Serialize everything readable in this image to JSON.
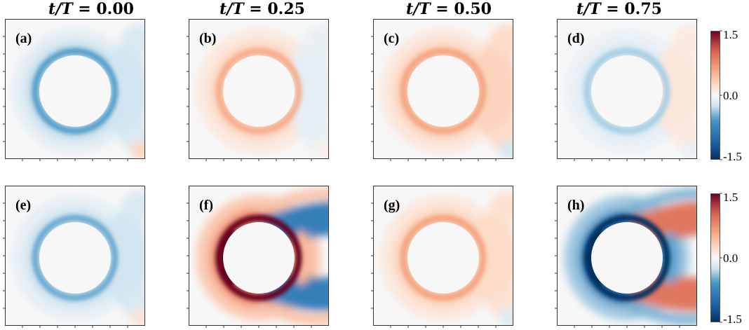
{
  "column_titles": [
    {
      "var": "t/T",
      "eq": " = ",
      "val": "0.00"
    },
    {
      "var": "t/T",
      "eq": " = ",
      "val": "0.25"
    },
    {
      "var": "t/T",
      "eq": " = ",
      "val": "0.50"
    },
    {
      "var": "t/T",
      "eq": " = ",
      "val": "0.75"
    }
  ],
  "colorbar": {
    "ticks": [
      "1.5",
      "0.0",
      "-1.5"
    ],
    "colors": {
      "low": "#053061",
      "mid": "#f7f7f7",
      "high": "#67001f"
    }
  },
  "chart_data": {
    "type": "heatmap",
    "vmin": -1.5,
    "vmax": 1.5,
    "panels": [
      {
        "label": "(a)",
        "row": 0,
        "col": 0,
        "ring": -0.55,
        "wake": -0.25,
        "wake_spread": "narrow",
        "wake_sign_alt": 0.1
      },
      {
        "label": "(b)",
        "row": 0,
        "col": 1,
        "ring": 0.55,
        "wake": -0.12,
        "wake_spread": "narrow",
        "wake_sign_alt": 0.0
      },
      {
        "label": "(c)",
        "row": 0,
        "col": 2,
        "ring": 0.6,
        "wake": 0.3,
        "wake_spread": "narrow",
        "wake_sign_alt": 0.0
      },
      {
        "label": "(d)",
        "row": 0,
        "col": 3,
        "ring": -0.35,
        "wake": 0.15,
        "wake_spread": "narrow",
        "wake_sign_alt": 0.0
      },
      {
        "label": "(e)",
        "row": 1,
        "col": 0,
        "ring": -0.5,
        "wake": -0.25,
        "wake_spread": "narrow",
        "wake_sign_alt": 0.0
      },
      {
        "label": "(f)",
        "row": 1,
        "col": 1,
        "ring": 1.5,
        "wake": -0.8,
        "wake_spread": "wide",
        "wake_sign_alt": 0.0
      },
      {
        "label": "(g)",
        "row": 1,
        "col": 2,
        "ring": 0.6,
        "wake": 0.25,
        "wake_spread": "narrow",
        "wake_sign_alt": 0.0
      },
      {
        "label": "(h)",
        "row": 1,
        "col": 3,
        "ring": -1.5,
        "wake": 0.9,
        "wake_spread": "wide",
        "wake_sign_alt": 0.0
      }
    ]
  }
}
